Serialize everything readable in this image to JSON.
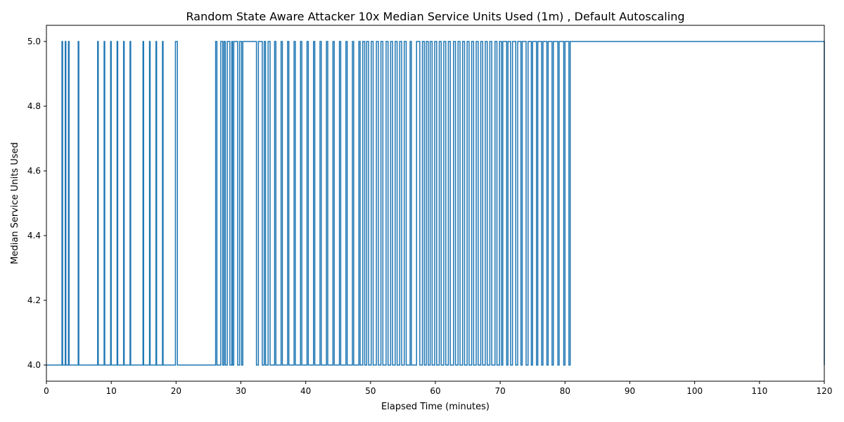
{
  "chart_data": {
    "type": "line",
    "title": "Random State Aware Attacker 10x Median Service Units Used (1m) , Default Autoscaling",
    "xlabel": "Elapsed Time (minutes)",
    "ylabel": "Median Service Units Used",
    "xlim": [
      0,
      120
    ],
    "ylim": [
      3.95,
      5.05
    ],
    "xticks": [
      0,
      10,
      20,
      30,
      40,
      50,
      60,
      70,
      80,
      90,
      100,
      110,
      120
    ],
    "yticks": [
      4.0,
      4.2,
      4.4,
      4.6,
      4.8,
      5.0
    ],
    "yticklabels": [
      "4.0",
      "4.2",
      "4.4",
      "4.6",
      "4.8",
      "5.0"
    ],
    "grid": false,
    "legend": "none",
    "color": "#1f77b4",
    "low_value": 4.0,
    "high_value": 5.0,
    "series": [
      {
        "high_intervals": [
          [
            2.4,
            2.5
          ],
          [
            2.9,
            3.0
          ],
          [
            3.4,
            3.5
          ],
          [
            4.9,
            5.0
          ],
          [
            7.9,
            8.0
          ],
          [
            8.9,
            9.0
          ],
          [
            9.9,
            10.0
          ],
          [
            10.9,
            11.0
          ],
          [
            11.9,
            12.0
          ],
          [
            12.9,
            13.0
          ],
          [
            14.9,
            15.0
          ],
          [
            15.9,
            16.0
          ],
          [
            16.9,
            17.0
          ],
          [
            17.9,
            18.0
          ],
          [
            19.9,
            20.2
          ],
          [
            26.1,
            26.3
          ],
          [
            26.9,
            27.2
          ],
          [
            27.4,
            27.6
          ],
          [
            27.9,
            28.3
          ],
          [
            28.6,
            28.7
          ],
          [
            28.9,
            29.5
          ],
          [
            29.8,
            30.1
          ],
          [
            30.3,
            32.4
          ],
          [
            32.7,
            33.3
          ],
          [
            33.6,
            33.8
          ],
          [
            34.2,
            34.5
          ],
          [
            35.2,
            35.4
          ],
          [
            36.2,
            36.4
          ],
          [
            37.2,
            37.4
          ],
          [
            38.2,
            38.4
          ],
          [
            39.2,
            39.4
          ],
          [
            40.2,
            40.4
          ],
          [
            41.2,
            41.4
          ],
          [
            42.2,
            42.4
          ],
          [
            43.2,
            43.4
          ],
          [
            44.2,
            44.4
          ],
          [
            45.2,
            45.4
          ],
          [
            46.2,
            46.4
          ],
          [
            47.2,
            47.4
          ],
          [
            48.2,
            48.4
          ],
          [
            48.8,
            49.1
          ],
          [
            49.4,
            49.7
          ],
          [
            50.1,
            50.4
          ],
          [
            50.9,
            51.2
          ],
          [
            51.6,
            51.9
          ],
          [
            52.4,
            52.7
          ],
          [
            53.1,
            53.4
          ],
          [
            53.8,
            54.1
          ],
          [
            54.5,
            54.8
          ],
          [
            55.2,
            55.5
          ],
          [
            56.1,
            56.3
          ],
          [
            57.1,
            57.6
          ],
          [
            58.0,
            58.3
          ],
          [
            58.6,
            58.9
          ],
          [
            59.2,
            59.5
          ],
          [
            59.9,
            60.2
          ],
          [
            60.6,
            60.9
          ],
          [
            61.3,
            61.6
          ],
          [
            62.0,
            62.3
          ],
          [
            62.8,
            63.1
          ],
          [
            63.5,
            63.8
          ],
          [
            64.2,
            64.5
          ],
          [
            64.9,
            65.2
          ],
          [
            65.6,
            65.9
          ],
          [
            66.3,
            66.6
          ],
          [
            67.0,
            67.3
          ],
          [
            67.7,
            68.0
          ],
          [
            68.4,
            68.7
          ],
          [
            69.2,
            69.5
          ],
          [
            69.9,
            70.2
          ],
          [
            70.4,
            71.0
          ],
          [
            71.2,
            71.6
          ],
          [
            71.9,
            72.4
          ],
          [
            72.7,
            73.2
          ],
          [
            73.4,
            74.0
          ],
          [
            74.3,
            74.8
          ],
          [
            75.0,
            75.6
          ],
          [
            75.8,
            76.4
          ],
          [
            76.6,
            77.2
          ],
          [
            77.4,
            78.0
          ],
          [
            78.2,
            78.9
          ],
          [
            79.1,
            79.8
          ],
          [
            80.0,
            80.6
          ],
          [
            80.8,
            120.0
          ]
        ]
      }
    ]
  }
}
